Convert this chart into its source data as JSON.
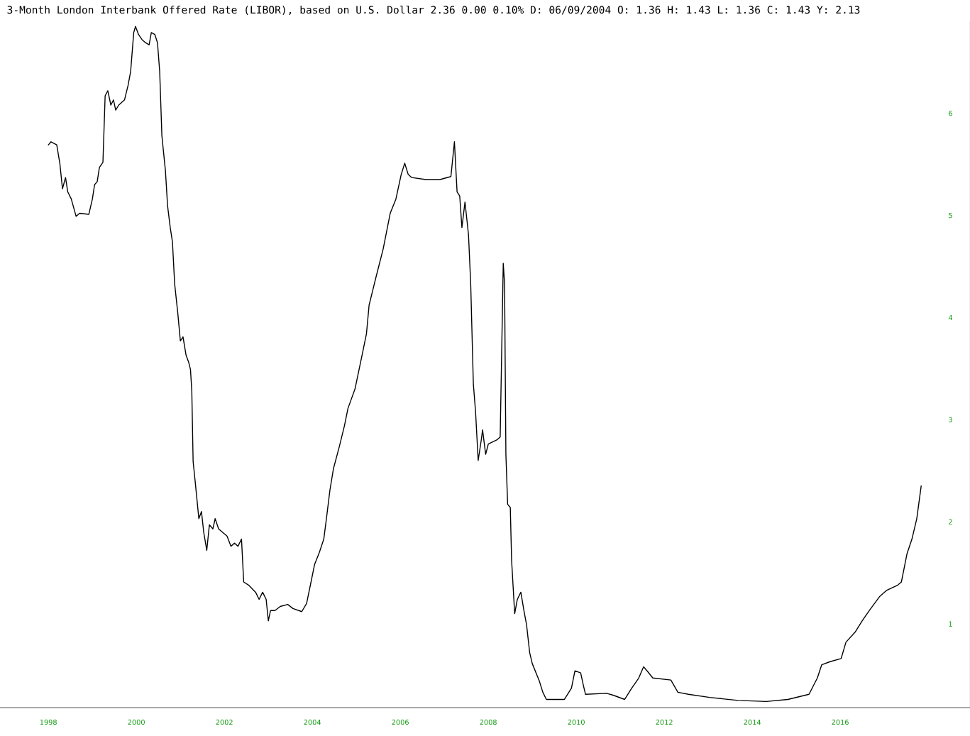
{
  "chart_data": {
    "type": "line",
    "title": "3-Month London Interbank Offered Rate (LIBOR), based on U.S. Dollar 2.36 0.00 0.10% D: 06/09/2004 O: 1.36 H: 1.43 L: 1.36 C: 1.43 Y: 2.13",
    "x": [
      1998.0,
      1998.06,
      1998.19,
      1998.26,
      1998.32,
      1998.39,
      1998.44,
      1998.52,
      1998.63,
      1998.71,
      1998.92,
      1999.0,
      1999.05,
      1999.11,
      1999.16,
      1999.24,
      1999.29,
      1999.35,
      1999.42,
      1999.48,
      1999.53,
      1999.6,
      1999.73,
      1999.81,
      1999.87,
      1999.94,
      1999.98,
      2000.05,
      2000.13,
      2000.21,
      2000.29,
      2000.34,
      2000.42,
      2000.48,
      2000.53,
      2000.58,
      2000.61,
      2000.66,
      2000.71,
      2000.77,
      2000.82,
      2000.87,
      2000.94,
      2001.0,
      2001.06,
      2001.13,
      2001.19,
      2001.23,
      2001.26,
      2001.29,
      2001.34,
      2001.42,
      2001.48,
      2001.53,
      2001.6,
      2001.66,
      2001.74,
      2001.79,
      2001.87,
      2001.95,
      2002.06,
      2002.15,
      2002.23,
      2002.31,
      2002.39,
      2002.44,
      2002.55,
      2002.71,
      2002.79,
      2002.87,
      2002.95,
      2003.0,
      2003.05,
      2003.15,
      2003.27,
      2003.44,
      2003.56,
      2003.76,
      2003.87,
      2003.97,
      2004.05,
      2004.16,
      2004.26,
      2004.32,
      2004.4,
      2004.48,
      2004.61,
      2004.73,
      2004.81,
      2004.97,
      2005.13,
      2005.23,
      2005.29,
      2005.37,
      2005.45,
      2005.61,
      2005.77,
      2005.9,
      2006.02,
      2006.1,
      2006.18,
      2006.26,
      2006.58,
      2006.9,
      2007.15,
      2007.23,
      2007.29,
      2007.35,
      2007.4,
      2007.47,
      2007.55,
      2007.6,
      2007.66,
      2007.71,
      2007.77,
      2007.84,
      2007.87,
      2007.94,
      2008.0,
      2008.19,
      2008.27,
      2008.34,
      2008.37,
      2008.4,
      2008.44,
      2008.5,
      2008.53,
      2008.6,
      2008.66,
      2008.74,
      2008.81,
      2008.87,
      2008.94,
      2009.0,
      2009.16,
      2009.24,
      2009.32,
      2009.73,
      2009.89,
      2009.97,
      2010.1,
      2010.16,
      2010.21,
      2010.69,
      2010.85,
      2011.1,
      2011.26,
      2011.42,
      2011.53,
      2011.61,
      2011.74,
      2012.15,
      2012.31,
      2012.55,
      2013.03,
      2013.68,
      2014.32,
      2014.81,
      2015.29,
      2015.48,
      2015.58,
      2015.77,
      2016.02,
      2016.13,
      2016.34,
      2016.5,
      2016.66,
      2016.9,
      2017.06,
      2017.31,
      2017.39,
      2017.52,
      2017.63,
      2017.74,
      2017.84
    ],
    "series": [
      {
        "color": "#000000",
        "values": [
          5.69,
          5.72,
          5.69,
          5.51,
          5.26,
          5.37,
          5.23,
          5.16,
          4.99,
          5.02,
          5.01,
          5.16,
          5.3,
          5.33,
          5.47,
          5.52,
          6.17,
          6.22,
          6.08,
          6.13,
          6.03,
          6.08,
          6.13,
          6.27,
          6.41,
          6.79,
          6.85,
          6.77,
          6.72,
          6.69,
          6.67,
          6.79,
          6.77,
          6.69,
          6.41,
          5.78,
          5.65,
          5.44,
          5.09,
          4.88,
          4.74,
          4.33,
          4.05,
          3.77,
          3.81,
          3.63,
          3.56,
          3.49,
          3.28,
          2.59,
          2.38,
          2.03,
          2.1,
          1.9,
          1.72,
          1.97,
          1.93,
          2.03,
          1.93,
          1.9,
          1.86,
          1.76,
          1.79,
          1.76,
          1.83,
          1.41,
          1.38,
          1.31,
          1.24,
          1.31,
          1.24,
          1.03,
          1.13,
          1.13,
          1.17,
          1.19,
          1.15,
          1.12,
          1.2,
          1.41,
          1.58,
          1.7,
          1.83,
          2.03,
          2.31,
          2.52,
          2.73,
          2.94,
          3.11,
          3.3,
          3.63,
          3.84,
          4.12,
          4.26,
          4.4,
          4.67,
          5.02,
          5.16,
          5.4,
          5.51,
          5.4,
          5.37,
          5.35,
          5.35,
          5.38,
          5.72,
          5.23,
          5.19,
          4.88,
          5.13,
          4.81,
          4.33,
          3.35,
          3.08,
          2.6,
          2.8,
          2.9,
          2.66,
          2.76,
          2.8,
          2.83,
          4.53,
          4.33,
          2.66,
          2.17,
          2.14,
          1.62,
          1.1,
          1.24,
          1.31,
          1.13,
          0.99,
          0.72,
          0.61,
          0.44,
          0.33,
          0.26,
          0.26,
          0.37,
          0.54,
          0.52,
          0.4,
          0.31,
          0.32,
          0.3,
          0.26,
          0.37,
          0.47,
          0.58,
          0.54,
          0.47,
          0.45,
          0.33,
          0.31,
          0.28,
          0.25,
          0.24,
          0.26,
          0.31,
          0.47,
          0.6,
          0.63,
          0.66,
          0.82,
          0.92,
          1.03,
          1.13,
          1.27,
          1.33,
          1.38,
          1.41,
          1.69,
          1.83,
          2.03,
          2.35
        ]
      }
    ],
    "xlim": [
      1996.9,
      2018.95
    ],
    "ylim": [
      0.18,
      6.9
    ],
    "xticks": [
      1998,
      2000,
      2002,
      2004,
      2006,
      2008,
      2010,
      2012,
      2014,
      2016
    ],
    "yticks": [
      1,
      2,
      3,
      4,
      5,
      6
    ],
    "grid": false,
    "legend": false,
    "marker": "none",
    "line_style": "solid"
  }
}
